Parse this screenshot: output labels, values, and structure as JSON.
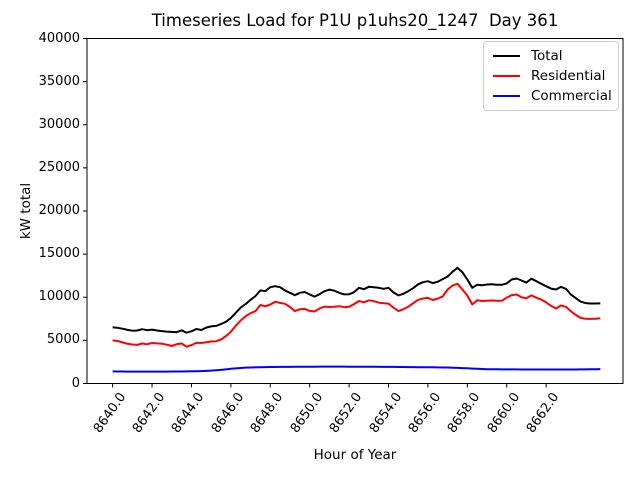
{
  "chart": {
    "title": "Timeseries Load for P1U p1uhs20_1247  Day 361",
    "xlabel": "Hour of Year",
    "ylabel": "kW total"
  },
  "chart_data": {
    "type": "line",
    "title": "Timeseries Load for P1U p1uhs20_1247  Day 361",
    "xlabel": "Hour of Year",
    "ylabel": "kW total",
    "xlim": [
      8638.7,
      8665.9
    ],
    "ylim": [
      0,
      40000
    ],
    "grid": false,
    "legend_position": "upper right",
    "xticks": {
      "values": [
        8640,
        8642,
        8644,
        8646,
        8648,
        8650,
        8652,
        8654,
        8656,
        8658,
        8660,
        8662
      ],
      "labels": [
        "8640.0",
        "8642.0",
        "8644.0",
        "8646.0",
        "8648.0",
        "8650.0",
        "8652.0",
        "8654.0",
        "8656.0",
        "8658.0",
        "8660.0",
        "8662.0"
      ]
    },
    "yticks": {
      "values": [
        0,
        5000,
        10000,
        15000,
        20000,
        25000,
        30000,
        35000,
        40000
      ],
      "labels": [
        "0",
        "5000",
        "10000",
        "15000",
        "20000",
        "25000",
        "30000",
        "35000",
        "40000"
      ]
    },
    "x": [
      8640.0,
      8640.25,
      8640.5,
      8640.75,
      8641.0,
      8641.25,
      8641.5,
      8641.75,
      8642.0,
      8642.25,
      8642.5,
      8642.75,
      8643.0,
      8643.25,
      8643.5,
      8643.75,
      8644.0,
      8644.25,
      8644.5,
      8644.75,
      8645.0,
      8645.25,
      8645.5,
      8645.75,
      8646.0,
      8646.25,
      8646.5,
      8646.75,
      8647.0,
      8647.25,
      8647.5,
      8647.75,
      8648.0,
      8648.25,
      8648.5,
      8648.75,
      8649.0,
      8649.25,
      8649.5,
      8649.75,
      8650.0,
      8650.25,
      8650.5,
      8650.75,
      8651.0,
      8651.25,
      8651.5,
      8651.75,
      8652.0,
      8652.25,
      8652.5,
      8652.75,
      8653.0,
      8653.25,
      8653.5,
      8653.75,
      8654.0,
      8654.25,
      8654.5,
      8654.75,
      8655.0,
      8655.25,
      8655.5,
      8655.75,
      8656.0,
      8656.25,
      8656.5,
      8656.75,
      8657.0,
      8657.25,
      8657.5,
      8657.75,
      8658.0,
      8658.25,
      8658.5,
      8658.75,
      8659.0,
      8659.25,
      8659.5,
      8659.75,
      8660.0,
      8660.25,
      8660.5,
      8660.75,
      8661.0,
      8661.25,
      8661.5,
      8661.75,
      8662.0,
      8662.25,
      8662.5,
      8662.75,
      8663.0,
      8663.25,
      8663.5,
      8663.75,
      8664.0,
      8664.25,
      8664.5,
      8664.75
    ],
    "series": [
      {
        "name": "Total",
        "color": "#000000",
        "values": [
          6500,
          6460,
          6350,
          6220,
          6120,
          6140,
          6300,
          6180,
          6250,
          6150,
          6080,
          6020,
          5980,
          5950,
          6170,
          5890,
          6050,
          6320,
          6200,
          6480,
          6620,
          6680,
          6900,
          7150,
          7600,
          8200,
          8800,
          9200,
          9700,
          10150,
          10800,
          10700,
          11170,
          11280,
          11170,
          10780,
          10520,
          10240,
          10520,
          10610,
          10320,
          10080,
          10350,
          10700,
          10890,
          10760,
          10520,
          10330,
          10340,
          10590,
          11080,
          10930,
          11210,
          11150,
          11090,
          10980,
          11090,
          10560,
          10220,
          10400,
          10700,
          11050,
          11500,
          11750,
          11860,
          11640,
          11800,
          12100,
          12400,
          12950,
          13410,
          12900,
          12060,
          11100,
          11450,
          11400,
          11480,
          11500,
          11460,
          11440,
          11600,
          12060,
          12170,
          11940,
          11700,
          12150,
          11860,
          11560,
          11280,
          11000,
          10900,
          11200,
          10980,
          10320,
          9900,
          9500,
          9320,
          9280,
          9280,
          9290
        ]
      },
      {
        "name": "Residential",
        "color": "#ff0000",
        "values": [
          5000,
          4930,
          4760,
          4600,
          4520,
          4470,
          4640,
          4550,
          4700,
          4650,
          4620,
          4500,
          4350,
          4560,
          4640,
          4270,
          4450,
          4720,
          4700,
          4780,
          4870,
          4900,
          5100,
          5500,
          6000,
          6700,
          7300,
          7800,
          8150,
          8400,
          9100,
          8950,
          9160,
          9470,
          9350,
          9240,
          8870,
          8400,
          8600,
          8650,
          8420,
          8350,
          8700,
          8920,
          8870,
          8900,
          8960,
          8850,
          8890,
          9200,
          9560,
          9420,
          9650,
          9540,
          9380,
          9300,
          9260,
          8800,
          8400,
          8600,
          8900,
          9300,
          9700,
          9850,
          9930,
          9680,
          9850,
          10100,
          10900,
          11350,
          11560,
          10900,
          10200,
          9160,
          9650,
          9560,
          9600,
          9620,
          9600,
          9590,
          9950,
          10250,
          10320,
          10000,
          9880,
          10220,
          9950,
          9740,
          9400,
          9000,
          8700,
          9040,
          8890,
          8380,
          7950,
          7600,
          7500,
          7490,
          7500,
          7560
        ]
      },
      {
        "name": "Commercial",
        "color": "#0000ff",
        "values": [
          1400,
          1395,
          1390,
          1385,
          1385,
          1380,
          1380,
          1380,
          1380,
          1380,
          1385,
          1385,
          1390,
          1390,
          1395,
          1400,
          1410,
          1420,
          1440,
          1460,
          1490,
          1530,
          1580,
          1640,
          1700,
          1750,
          1800,
          1840,
          1860,
          1880,
          1890,
          1900,
          1910,
          1915,
          1920,
          1925,
          1930,
          1935,
          1940,
          1945,
          1950,
          1950,
          1955,
          1955,
          1960,
          1960,
          1955,
          1955,
          1950,
          1950,
          1945,
          1945,
          1940,
          1940,
          1935,
          1930,
          1925,
          1920,
          1915,
          1910,
          1905,
          1900,
          1895,
          1890,
          1885,
          1880,
          1870,
          1860,
          1850,
          1830,
          1810,
          1790,
          1760,
          1730,
          1700,
          1680,
          1660,
          1650,
          1645,
          1640,
          1635,
          1630,
          1630,
          1625,
          1625,
          1620,
          1620,
          1620,
          1620,
          1620,
          1618,
          1618,
          1620,
          1622,
          1625,
          1630,
          1640,
          1650,
          1660,
          1670
        ]
      }
    ]
  }
}
